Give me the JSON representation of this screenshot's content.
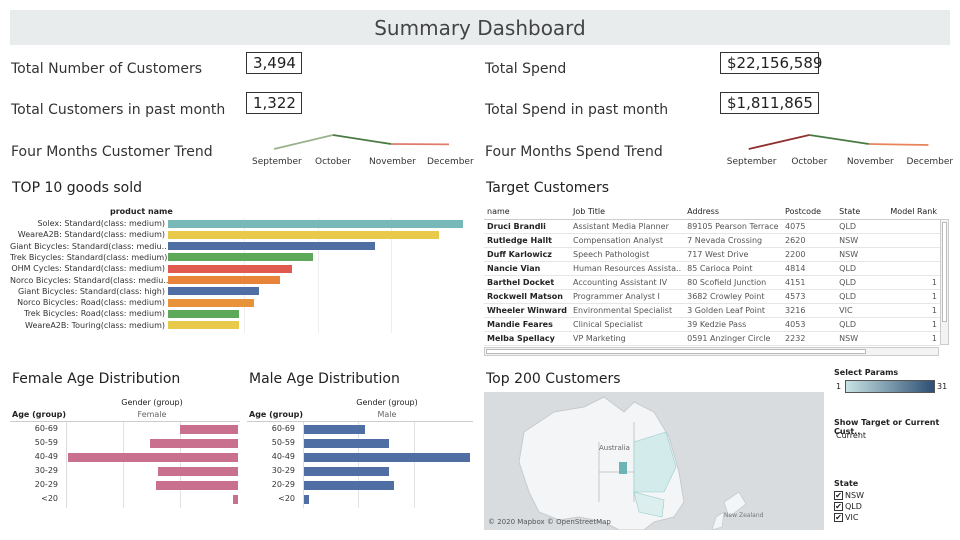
{
  "title": "Summary Dashboard",
  "kpis": {
    "total_customers_label": "Total Number of Customers",
    "total_customers_value": "3,494",
    "customers_past_month_label": "Total Customers in past month",
    "customers_past_month_value": "1,322",
    "customer_trend_label": "Four Months Customer Trend",
    "total_spend_label": "Total Spend",
    "total_spend_value": "$22,156,589",
    "spend_past_month_label": "Total Spend in past month",
    "spend_past_month_value": "$1,811,865",
    "spend_trend_label": "Four Months Spend Trend"
  },
  "trend_months": [
    "September",
    "October",
    "November",
    "December"
  ],
  "customer_trend": [
    0.15,
    0.85,
    0.4,
    0.38
  ],
  "spend_trend": [
    0.15,
    0.85,
    0.4,
    0.35
  ],
  "goods": {
    "title": "TOP 10 goods sold",
    "header": "product name",
    "items": [
      {
        "label": "Solex: Standard(class: medium)",
        "value": 1.0,
        "color": "#79b8b8"
      },
      {
        "label": "WeareA2B: Standard(class: medium)",
        "value": 0.92,
        "color": "#e8c94a"
      },
      {
        "label": "Giant Bicycles: Standard(class: mediu..",
        "value": 0.7,
        "color": "#4f6ea3"
      },
      {
        "label": "Trek Bicycles: Standard(class: medium)",
        "value": 0.49,
        "color": "#5ea85a"
      },
      {
        "label": "OHM Cycles: Standard(class: medium)",
        "value": 0.42,
        "color": "#e05a4f"
      },
      {
        "label": "Norco Bicycles: Standard(class: mediu..",
        "value": 0.38,
        "color": "#e8833a"
      },
      {
        "label": "Giant Bicycles: Standard(class: high)",
        "value": 0.31,
        "color": "#4f6ea3"
      },
      {
        "label": "Norco Bicycles: Road(class: medium)",
        "value": 0.29,
        "color": "#e8933a"
      },
      {
        "label": "Trek Bicycles: Road(class: medium)",
        "value": 0.24,
        "color": "#5ea85a"
      },
      {
        "label": "WeareA2B: Touring(class: medium)",
        "value": 0.24,
        "color": "#e8c94a"
      }
    ]
  },
  "target": {
    "title": "Target Customers",
    "columns": [
      "name",
      "Job Title",
      "Address",
      "Postcode",
      "State",
      "Model Rank"
    ],
    "rows": [
      [
        "Druci Brandli",
        "Assistant Media Planner",
        "89105 Pearson Terrace",
        "4075",
        "QLD",
        ""
      ],
      [
        "Rutledge Hallt",
        "Compensation Analyst",
        "7 Nevada Crossing",
        "2620",
        "NSW",
        ""
      ],
      [
        "Duff Karlowicz",
        "Speech Pathologist",
        "717 West Drive",
        "2200",
        "NSW",
        ""
      ],
      [
        "Nancie Vian",
        "Human Resources Assista..",
        "85 Carioca Point",
        "4814",
        "QLD",
        ""
      ],
      [
        "Barthel Docket",
        "Accounting Assistant IV",
        "80 Scofield Junction",
        "4151",
        "QLD",
        "1"
      ],
      [
        "Rockwell Matson",
        "Programmer Analyst I",
        "3682 Crowley Point",
        "4573",
        "QLD",
        "1"
      ],
      [
        "Wheeler Winward",
        "Environmental Specialist",
        "3 Golden Leaf Point",
        "3216",
        "VIC",
        "1"
      ],
      [
        "Mandie Feares",
        "Clinical Specialist",
        "39 Kedzie Pass",
        "4053",
        "QLD",
        "1"
      ],
      [
        "Melba Spellacy",
        "VP Marketing",
        "0591 Anzinger Circle",
        "2232",
        "NSW",
        "1"
      ]
    ]
  },
  "female": {
    "title": "Female Age Distribution",
    "gender_header": "Gender (group)",
    "age_header": "Age (group)",
    "gender": "Female",
    "color": "#c9708f",
    "groups": [
      "60-69",
      "50-59",
      "40-49",
      "30-29",
      "20-29",
      "<20"
    ],
    "values": [
      0.34,
      0.52,
      1.0,
      0.47,
      0.48,
      0.03
    ]
  },
  "male": {
    "title": "Male Age Distribution",
    "gender_header": "Gender (group)",
    "age_header": "Age (group)",
    "gender": "Male",
    "color": "#4f6ea3",
    "groups": [
      "60-69",
      "50-59",
      "40-49",
      "30-29",
      "20-29",
      "<20"
    ],
    "values": [
      0.37,
      0.51,
      1.0,
      0.51,
      0.54,
      0.03
    ]
  },
  "map": {
    "title": "Top 200 Customers",
    "label_australia": "Australia",
    "label_nz": "New Zealand",
    "attribution": "© 2020 Mapbox © OpenStreetMap"
  },
  "params": {
    "select_label": "Select Params",
    "min": "1",
    "max": "31",
    "grad_start": "#c8e3e3",
    "grad_end": "#2d4f73",
    "show_label": "Show Target or Current Cust..",
    "show_value": "Current",
    "state_label": "State",
    "states": [
      "NSW",
      "QLD",
      "VIC"
    ]
  }
}
